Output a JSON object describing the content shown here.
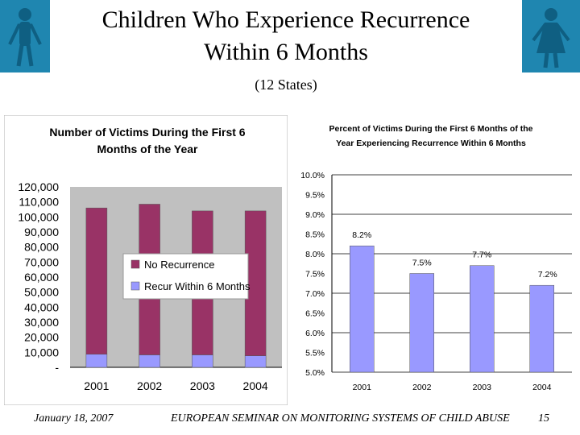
{
  "slide": {
    "title_line1": "Children Who Experience Recurrence",
    "title_line2": "Within 6 Months",
    "subtitle": "(12 States)"
  },
  "icons": {
    "left": "boy-figure-icon",
    "right": "girl-figure-icon",
    "color": "#1f86b0"
  },
  "footer": {
    "date": "January 18, 2007",
    "seminar": "EUROPEAN SEMINAR ON MONITORING SYSTEMS OF CHILD ABUSE",
    "page": "15"
  },
  "chart_data": [
    {
      "type": "bar",
      "stacked": true,
      "title": "Number of Victims During the First 6 Months of the Year",
      "categories": [
        "2001",
        "2002",
        "2003",
        "2004"
      ],
      "series": [
        {
          "name": "Recur Within 6 Months",
          "color": "#9999ff",
          "values": [
            8700,
            8300,
            8300,
            7700
          ]
        },
        {
          "name": "No Recurrence",
          "color": "#993366",
          "values": [
            97300,
            100200,
            95700,
            96300
          ]
        }
      ],
      "ylim": [
        0,
        120000
      ],
      "yticks": [
        "-",
        "10,000",
        "20,000",
        "30,000",
        "40,000",
        "50,000",
        "60,000",
        "70,000",
        "80,000",
        "90,000",
        "100,000",
        "110,000",
        "120,000"
      ],
      "legend": "center",
      "grid": false,
      "background": "#c0c0c0"
    },
    {
      "type": "bar",
      "title": "Percent of Victims During the First 6 Months of the Year Experiencing Recurrence Within 6 Months",
      "categories": [
        "2001",
        "2002",
        "2003",
        "2004"
      ],
      "values": [
        8.2,
        7.5,
        7.7,
        7.2
      ],
      "data_labels": [
        "8.2%",
        "7.5%",
        "7.7%",
        "7.2%"
      ],
      "color": "#9999ff",
      "ylim": [
        5.0,
        10.0
      ],
      "yticks": [
        "5.0%",
        "5.5%",
        "6.0%",
        "6.5%",
        "7.0%",
        "7.5%",
        "8.0%",
        "8.5%",
        "9.0%",
        "9.5%",
        "10.0%"
      ],
      "grid": true
    }
  ]
}
